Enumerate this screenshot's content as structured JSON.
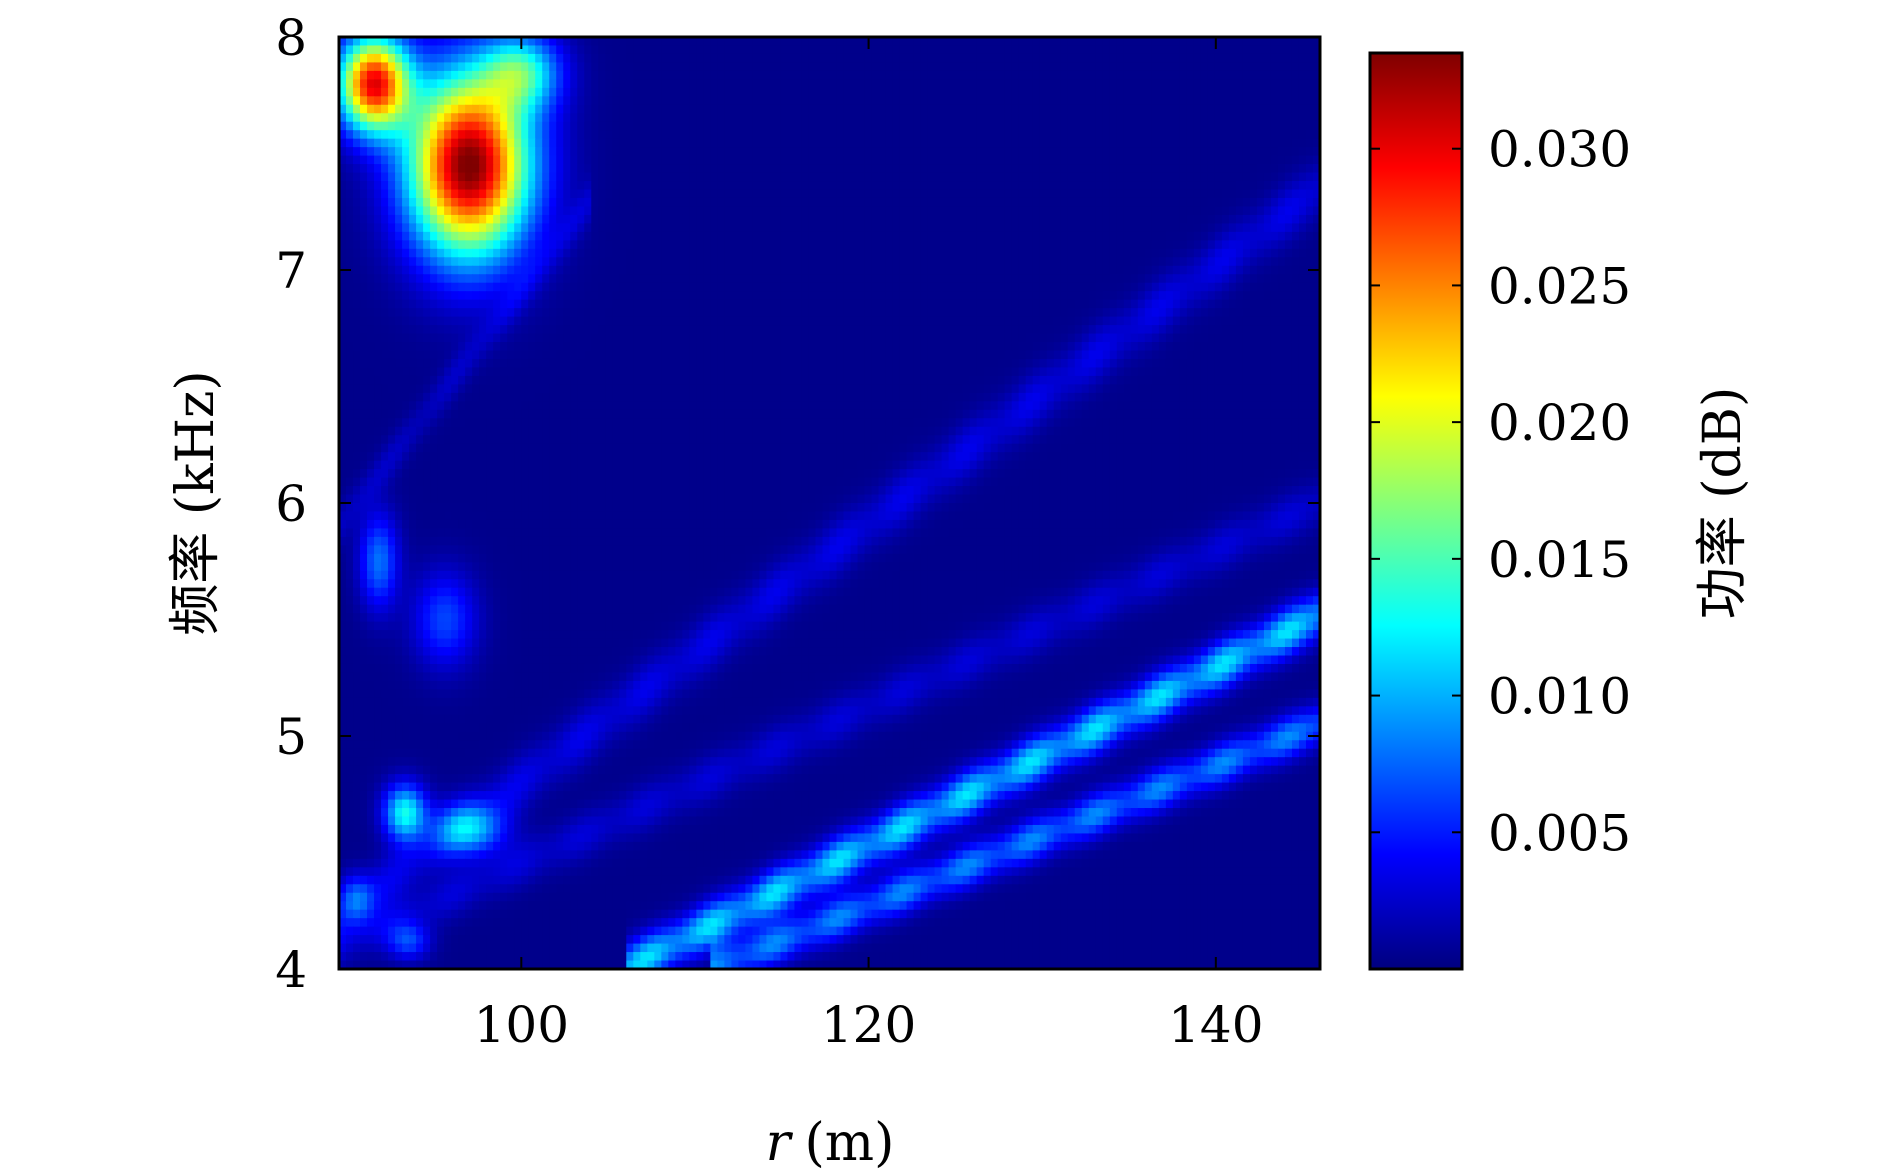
{
  "chart_data": {
    "type": "heatmap",
    "title": "",
    "xlabel_var": "r",
    "xlabel_unit": "(m)",
    "ylabel": "频率 (kHz)",
    "colorbar_label": "功率 (dB)",
    "xlim": [
      89.5,
      146
    ],
    "ylim": [
      4,
      8
    ],
    "x_ticks": [
      100,
      120,
      140
    ],
    "y_ticks": [
      4,
      5,
      6,
      7,
      8
    ],
    "colorbar_range": [
      0,
      0.0335
    ],
    "colorbar_ticks": [
      "0.005",
      "0.010",
      "0.015",
      "0.020",
      "0.025",
      "0.030"
    ],
    "colorbar_tick_values": [
      0.005,
      0.01,
      0.015,
      0.02,
      0.025,
      0.03
    ],
    "colormap": "jet",
    "colormap_stops": [
      "#00007f",
      "#0000ff",
      "#007fff",
      "#00ffff",
      "#7fff7f",
      "#ffff00",
      "#ff7f00",
      "#ff0000",
      "#7f0000"
    ],
    "background_value": 0.0004,
    "features": {
      "ridges": [
        {
          "x": [
            89.5,
            146
          ],
          "y": [
            4.22,
            7.35
          ],
          "peak": 0.0032,
          "width_khz": 0.12
        },
        {
          "x": [
            89.5,
            146
          ],
          "y": [
            4.1,
            6.0
          ],
          "peak": 0.0026,
          "width_khz": 0.1
        },
        {
          "x": [
            106,
            146
          ],
          "y": [
            4.0,
            5.52
          ],
          "peak": 0.0115,
          "width_khz": 0.1
        },
        {
          "x": [
            111,
            146
          ],
          "y": [
            4.0,
            5.05
          ],
          "peak": 0.0085,
          "width_khz": 0.09
        },
        {
          "x": [
            89.5,
            104
          ],
          "y": [
            5.9,
            7.3
          ],
          "peak": 0.002,
          "width_khz": 0.09
        }
      ],
      "blobs": [
        {
          "x": 91.5,
          "y": 7.8,
          "sx": 2.0,
          "sy": 0.2,
          "peak": 0.029
        },
        {
          "x": 97.0,
          "y": 7.45,
          "sx": 3.4,
          "sy": 0.38,
          "peak": 0.0335
        },
        {
          "x": 100.0,
          "y": 7.85,
          "sx": 2.2,
          "sy": 0.16,
          "peak": 0.012
        },
        {
          "x": 91.8,
          "y": 5.75,
          "sx": 1.1,
          "sy": 0.2,
          "peak": 0.0075
        },
        {
          "x": 95.6,
          "y": 5.5,
          "sx": 1.8,
          "sy": 0.2,
          "peak": 0.006
        },
        {
          "x": 93.3,
          "y": 4.67,
          "sx": 1.2,
          "sy": 0.12,
          "peak": 0.0125
        },
        {
          "x": 97.0,
          "y": 4.6,
          "sx": 2.0,
          "sy": 0.11,
          "peak": 0.0095
        },
        {
          "x": 90.5,
          "y": 4.3,
          "sx": 1.0,
          "sy": 0.1,
          "peak": 0.006
        },
        {
          "x": 93.5,
          "y": 4.12,
          "sx": 1.2,
          "sy": 0.08,
          "peak": 0.006
        }
      ]
    }
  }
}
